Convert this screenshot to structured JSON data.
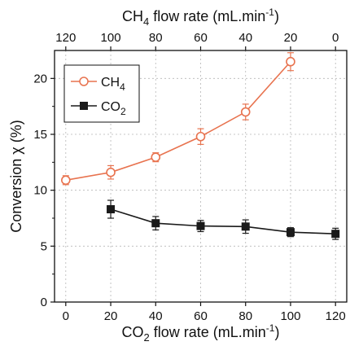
{
  "chart_data": {
    "type": "line",
    "ylabel": "Conversion χ (%)",
    "xlabel": {
      "main": "CO",
      "sub": "2",
      "rest": " flow rate (mL.min",
      "sup": "-1",
      "close": ")"
    },
    "top_xlabel": {
      "main": "CH",
      "sub": "4",
      "rest": " flow rate (mL.min",
      "sup": "-1",
      "close": ")"
    },
    "x": [
      0,
      20,
      40,
      60,
      80,
      100,
      120
    ],
    "xlim": [
      -5,
      125
    ],
    "ylim": [
      0,
      22.5
    ],
    "x_ticks": [
      "0",
      "20",
      "40",
      "60",
      "80",
      "100",
      "120"
    ],
    "top_ticks": [
      "120",
      "100",
      "80",
      "60",
      "40",
      "20",
      "0"
    ],
    "y_ticks": [
      0,
      5,
      10,
      15,
      20
    ],
    "y_tick_labels": [
      "0",
      "5",
      "10",
      "15",
      "20"
    ],
    "grid": true,
    "legend_position": "top-left",
    "colors": {
      "ch4": "#e8734f",
      "co2": "#1a1a1a"
    },
    "series": [
      {
        "key": "ch4",
        "name": "CH",
        "name_sub": "4",
        "marker": "open-circle",
        "points": [
          {
            "x": 0,
            "y": 10.9,
            "err": 0.4
          },
          {
            "x": 20,
            "y": 11.6,
            "err": 0.6
          },
          {
            "x": 40,
            "y": 12.95,
            "err": 0.4
          },
          {
            "x": 60,
            "y": 14.8,
            "err": 0.7
          },
          {
            "x": 80,
            "y": 17.0,
            "err": 0.7
          },
          {
            "x": 100,
            "y": 21.5,
            "err": 0.8
          }
        ]
      },
      {
        "key": "co2",
        "name": "CO",
        "name_sub": "2",
        "marker": "filled-square",
        "points": [
          {
            "x": 20,
            "y": 8.3,
            "err": 0.8
          },
          {
            "x": 40,
            "y": 7.05,
            "err": 0.6
          },
          {
            "x": 60,
            "y": 6.8,
            "err": 0.5
          },
          {
            "x": 80,
            "y": 6.75,
            "err": 0.6
          },
          {
            "x": 100,
            "y": 6.25,
            "err": 0.4
          },
          {
            "x": 120,
            "y": 6.1,
            "err": 0.5
          }
        ]
      }
    ]
  }
}
